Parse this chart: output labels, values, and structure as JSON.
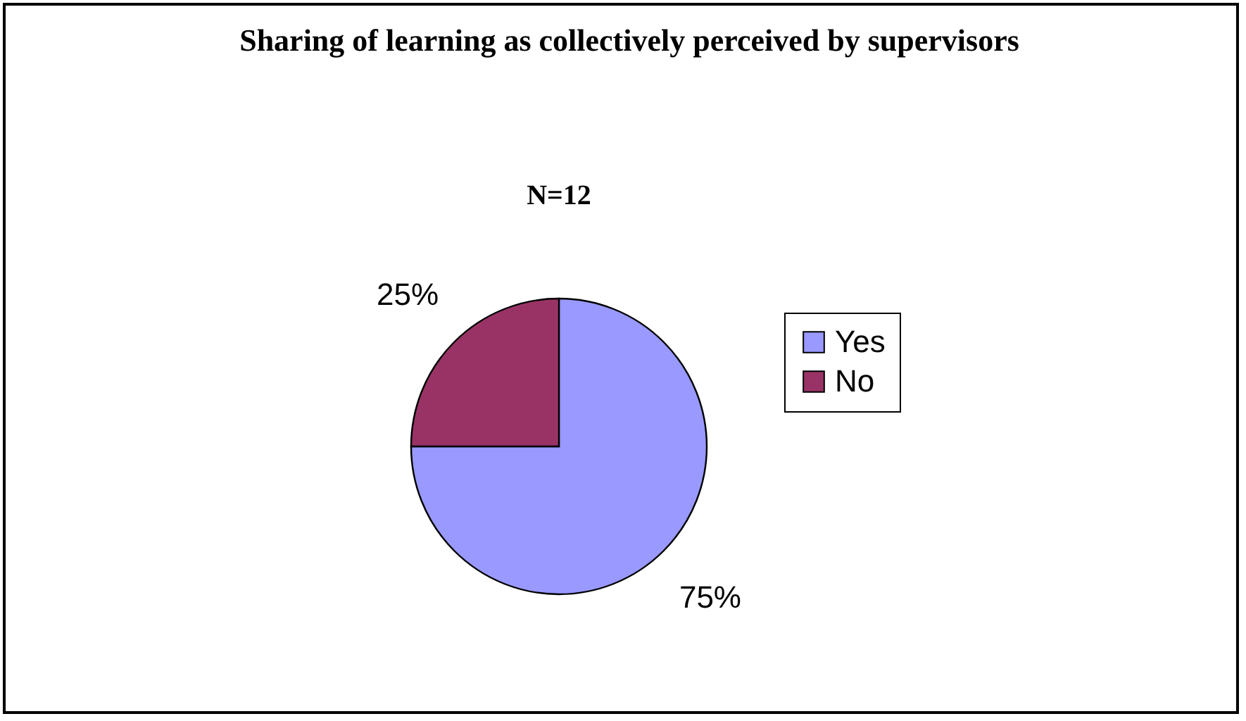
{
  "chart_data": {
    "type": "pie",
    "title": "Sharing of learning as collectively perceived by supervisors",
    "subtitle": "N=12",
    "categories": [
      "Yes",
      "No"
    ],
    "values": [
      75,
      25
    ],
    "colors": [
      "#9999ff",
      "#993366"
    ],
    "value_labels": [
      "75%",
      "25%"
    ],
    "legend": "right"
  }
}
